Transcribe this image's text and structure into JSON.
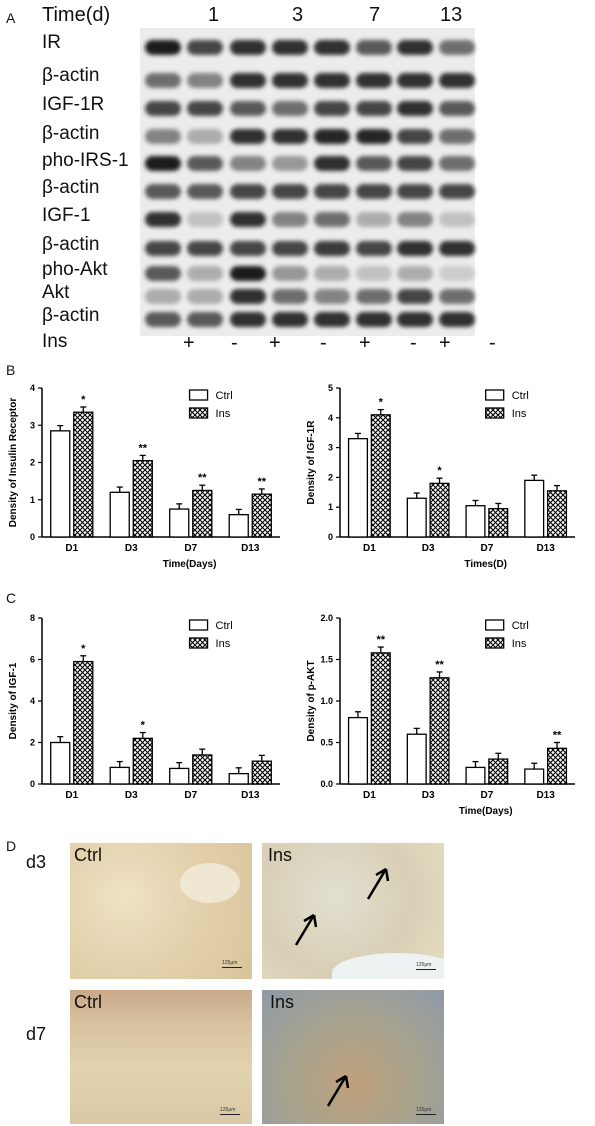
{
  "panels": {
    "a": "A",
    "b": "B",
    "c": "C",
    "d": "D"
  },
  "blot": {
    "time_header": "Time(d)",
    "timepoints": [
      "1",
      "3",
      "7",
      "13"
    ],
    "rows": [
      "IR",
      "β-actin",
      "IGF-1R",
      "β-actin",
      "pho-IRS-1",
      "β-actin",
      "IGF-1",
      "β-actin",
      "pho-Akt",
      "Akt",
      "β-actin"
    ],
    "ins_label": "Ins",
    "ins_signs": [
      "+",
      "-",
      "+",
      "-",
      "+",
      "-",
      "+",
      "-"
    ]
  },
  "legend": {
    "ctrl": "Ctrl",
    "ins": "Ins"
  },
  "chart_data": [
    {
      "type": "bar",
      "title": "",
      "ylabel": "Density of Insulin Receptor",
      "xlabel": "Time(Days)",
      "categories": [
        "D1",
        "D3",
        "D7",
        "D13"
      ],
      "ylim": [
        0,
        4
      ],
      "yticks": [
        "0",
        "1",
        "2",
        "3",
        "4"
      ],
      "series": [
        {
          "name": "Ctrl",
          "values": [
            2.85,
            1.2,
            0.75,
            0.6
          ]
        },
        {
          "name": "Ins",
          "values": [
            3.35,
            2.05,
            1.25,
            1.15
          ]
        }
      ],
      "annotations": [
        "*",
        "**",
        "**",
        "**"
      ]
    },
    {
      "type": "bar",
      "title": "",
      "ylabel": "Density of IGF-1R",
      "xlabel": "Times(D)",
      "categories": [
        "D1",
        "D3",
        "D7",
        "D13"
      ],
      "ylim": [
        0,
        5
      ],
      "yticks": [
        "0",
        "1",
        "2",
        "3",
        "4",
        "5"
      ],
      "series": [
        {
          "name": "Ctrl",
          "values": [
            3.3,
            1.3,
            1.05,
            1.9
          ]
        },
        {
          "name": "Ins",
          "values": [
            4.1,
            1.8,
            0.95,
            1.55
          ]
        }
      ],
      "annotations": [
        "*",
        "*",
        "",
        ""
      ]
    },
    {
      "type": "bar",
      "title": "",
      "ylabel": "Density of IGF-1",
      "xlabel": "",
      "categories": [
        "D1",
        "D3",
        "D7",
        "D13"
      ],
      "ylim": [
        0,
        8
      ],
      "yticks": [
        "0",
        "2",
        "4",
        "6",
        "8"
      ],
      "series": [
        {
          "name": "Ctrl",
          "values": [
            2.0,
            0.8,
            0.75,
            0.5
          ]
        },
        {
          "name": "Ins",
          "values": [
            5.9,
            2.2,
            1.4,
            1.1
          ]
        }
      ],
      "annotations": [
        "*",
        "*",
        "",
        ""
      ]
    },
    {
      "type": "bar",
      "title": "",
      "ylabel": "Density of p-AKT",
      "xlabel": "Time(Days)",
      "categories": [
        "D1",
        "D3",
        "D7",
        "D13"
      ],
      "ylim": [
        0,
        2.0
      ],
      "yticks": [
        "0.0",
        "0.5",
        "1.0",
        "1.5",
        "2.0"
      ],
      "series": [
        {
          "name": "Ctrl",
          "values": [
            0.8,
            0.6,
            0.2,
            0.18
          ]
        },
        {
          "name": "Ins",
          "values": [
            1.58,
            1.28,
            0.3,
            0.43
          ]
        }
      ],
      "annotations": [
        "**",
        "**",
        "",
        "**"
      ]
    }
  ],
  "histology": {
    "row_labels": [
      "d3",
      "d7"
    ],
    "titles": [
      "Ctrl",
      "Ins",
      "Ctrl",
      "Ins"
    ],
    "scale_text": "125μm",
    "arrow_icon": "arrow-icon"
  },
  "colors": {
    "bar_ctrl": "#ffffff",
    "bar_ins_hatch": "#000000",
    "tissue_ctrl": "#e8d6b0",
    "tissue_ins_d7": "#b8a08a"
  }
}
